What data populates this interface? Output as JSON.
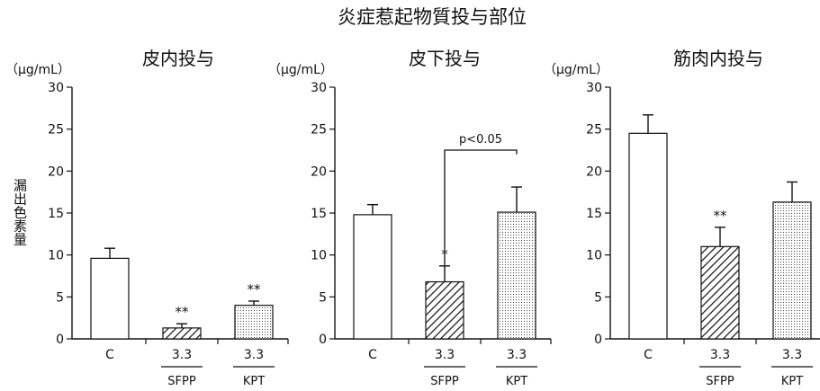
{
  "figure": {
    "title": "炎症惹起物質投与部位",
    "ylabel": "漏出色素量"
  },
  "chart_data": [
    {
      "type": "bar",
      "title": "皮内投与",
      "unit": "（μg/mL）",
      "categories": [
        "C",
        "3.3",
        "3.3"
      ],
      "group_labels": [
        "",
        "SFPP",
        "KPT"
      ],
      "values": [
        9.6,
        1.3,
        4.0
      ],
      "errors": [
        1.2,
        0.5,
        0.5
      ],
      "significance": [
        "",
        "**",
        "**"
      ],
      "fills": [
        "white",
        "hatch",
        "dots"
      ],
      "ylim": [
        0,
        30
      ],
      "yticks": [
        0,
        5,
        10,
        15,
        20,
        25,
        30
      ],
      "comparison": null
    },
    {
      "type": "bar",
      "title": "皮下投与",
      "unit": "（μg/mL）",
      "categories": [
        "C",
        "3.3",
        "3.3"
      ],
      "group_labels": [
        "",
        "SFPP",
        "KPT"
      ],
      "values": [
        14.8,
        6.8,
        15.1
      ],
      "errors": [
        1.2,
        1.9,
        3.0
      ],
      "significance": [
        "",
        "*",
        ""
      ],
      "fills": [
        "white",
        "hatch",
        "dots"
      ],
      "ylim": [
        0,
        30
      ],
      "yticks": [
        0,
        5,
        10,
        15,
        20,
        25,
        30
      ],
      "comparison": {
        "from": 1,
        "to": 2,
        "label": "p<0.05",
        "y": 22.5,
        "left_bottom": 8.8,
        "right_bottom": 22.0
      }
    },
    {
      "type": "bar",
      "title": "筋肉内投与",
      "unit": "（μg/mL）",
      "categories": [
        "C",
        "3.3",
        "3.3"
      ],
      "group_labels": [
        "",
        "SFPP",
        "KPT"
      ],
      "values": [
        24.5,
        11.0,
        16.3
      ],
      "errors": [
        2.2,
        2.3,
        2.4
      ],
      "significance": [
        "",
        "**",
        ""
      ],
      "fills": [
        "white",
        "hatch",
        "dots"
      ],
      "ylim": [
        0,
        30
      ],
      "yticks": [
        0,
        5,
        10,
        15,
        20,
        25,
        30
      ],
      "comparison": null
    }
  ]
}
